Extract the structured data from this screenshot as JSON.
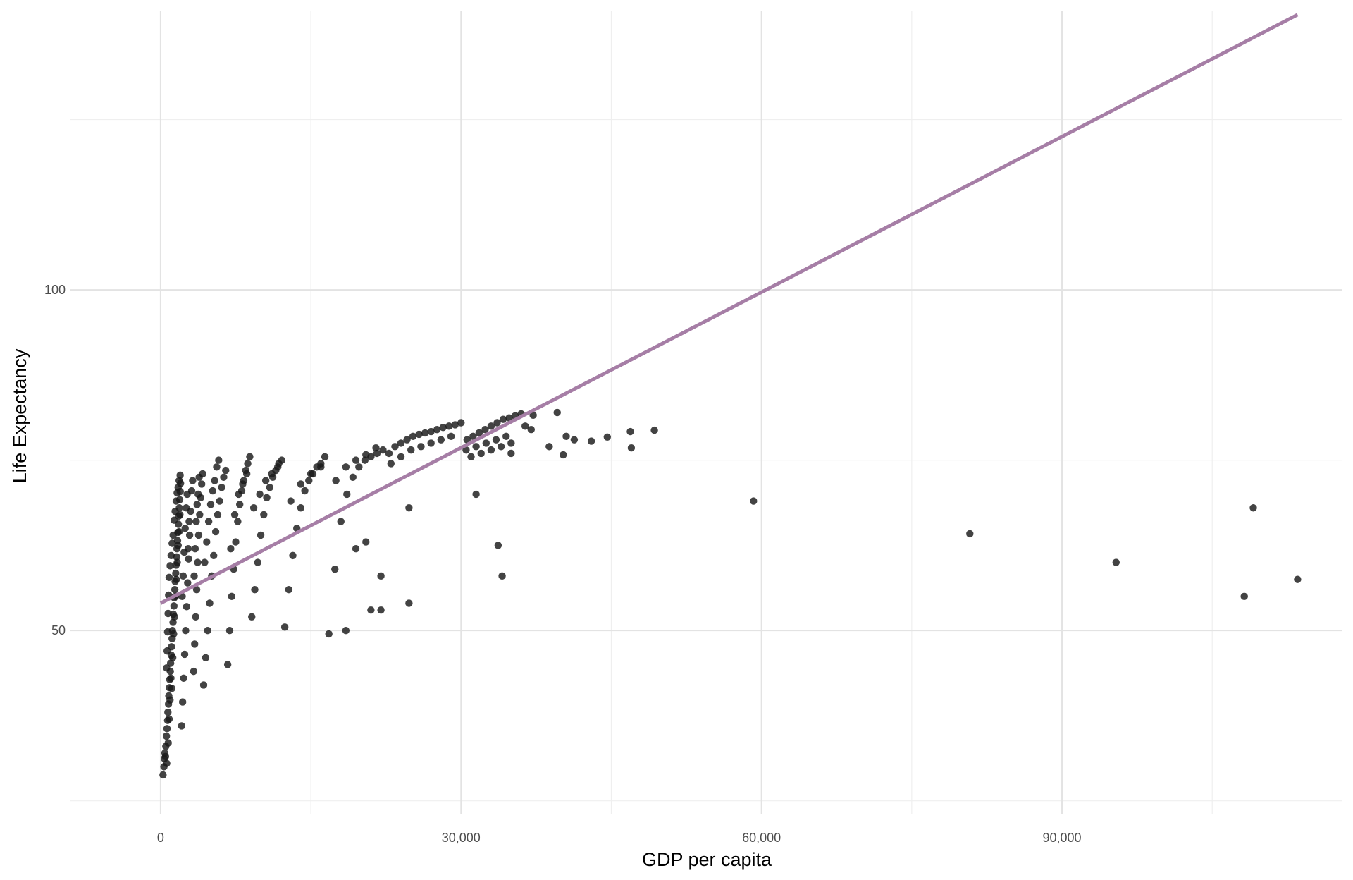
{
  "colors": {
    "background": "#ffffff",
    "grid_major": "#e3e3e3",
    "grid_minor": "#efefef",
    "points": "#1a1a1a",
    "fit_line": "#a67ea6"
  },
  "chart_data": {
    "type": "scatter",
    "xlabel": "GDP per capita",
    "ylabel": "Life Expectancy",
    "xlim": [
      -9000,
      118000
    ],
    "ylim": [
      23,
      141
    ],
    "grid": true,
    "x_ticks": [
      {
        "value": 0,
        "label": "0"
      },
      {
        "value": 30000,
        "label": "30,000"
      },
      {
        "value": 60000,
        "label": "60,000"
      },
      {
        "value": 90000,
        "label": "90,000"
      }
    ],
    "y_ticks": [
      {
        "value": 50,
        "label": "50"
      },
      {
        "value": 100,
        "label": "100"
      }
    ],
    "fit_line": {
      "x": [
        0,
        113523
      ],
      "y": [
        54.0,
        140.4
      ]
    },
    "points": [
      [
        241,
        28.8
      ],
      [
        331,
        30.0
      ],
      [
        376,
        31.2
      ],
      [
        420,
        32.0
      ],
      [
        486,
        31.5
      ],
      [
        520,
        33.0
      ],
      [
        580,
        34.5
      ],
      [
        610,
        30.5
      ],
      [
        640,
        35.6
      ],
      [
        700,
        36.8
      ],
      [
        730,
        38.0
      ],
      [
        760,
        33.5
      ],
      [
        790,
        39.2
      ],
      [
        820,
        40.4
      ],
      [
        850,
        37.0
      ],
      [
        880,
        41.6
      ],
      [
        910,
        42.8
      ],
      [
        940,
        39.8
      ],
      [
        970,
        44.0
      ],
      [
        1000,
        45.2
      ],
      [
        1030,
        43.0
      ],
      [
        1060,
        46.4
      ],
      [
        1090,
        47.6
      ],
      [
        1120,
        41.5
      ],
      [
        1150,
        48.8
      ],
      [
        1180,
        50.0
      ],
      [
        1210,
        46.0
      ],
      [
        1240,
        51.2
      ],
      [
        1270,
        52.4
      ],
      [
        1300,
        49.5
      ],
      [
        1330,
        53.6
      ],
      [
        1360,
        54.8
      ],
      [
        1390,
        52.0
      ],
      [
        1420,
        56.0
      ],
      [
        1450,
        57.2
      ],
      [
        1480,
        55.0
      ],
      [
        1510,
        58.4
      ],
      [
        1540,
        59.6
      ],
      [
        1570,
        57.5
      ],
      [
        1600,
        60.8
      ],
      [
        1630,
        62.0
      ],
      [
        1660,
        60.0
      ],
      [
        1690,
        63.2
      ],
      [
        1720,
        64.4
      ],
      [
        1750,
        62.5
      ],
      [
        1780,
        65.6
      ],
      [
        1810,
        66.8
      ],
      [
        1840,
        64.5
      ],
      [
        1870,
        68.0
      ],
      [
        1900,
        69.2
      ],
      [
        1930,
        67.0
      ],
      [
        1960,
        70.4
      ],
      [
        1990,
        71.6
      ],
      [
        600,
        44.5
      ],
      [
        650,
        47.0
      ],
      [
        700,
        49.8
      ],
      [
        750,
        52.5
      ],
      [
        800,
        55.2
      ],
      [
        850,
        57.8
      ],
      [
        950,
        59.5
      ],
      [
        1050,
        61.0
      ],
      [
        1150,
        62.8
      ],
      [
        1250,
        64.0
      ],
      [
        1350,
        66.2
      ],
      [
        1450,
        67.5
      ],
      [
        1550,
        69.0
      ],
      [
        1650,
        70.2
      ],
      [
        1750,
        71.0
      ],
      [
        1850,
        72.0
      ],
      [
        1950,
        72.8
      ],
      [
        2100,
        36.0
      ],
      [
        2200,
        39.5
      ],
      [
        2300,
        43.0
      ],
      [
        2400,
        46.5
      ],
      [
        2500,
        50.0
      ],
      [
        2600,
        53.5
      ],
      [
        2700,
        57.0
      ],
      [
        2800,
        60.5
      ],
      [
        2900,
        64.0
      ],
      [
        3000,
        67.5
      ],
      [
        3100,
        70.5
      ],
      [
        3200,
        72.0
      ],
      [
        2150,
        55.0
      ],
      [
        2250,
        58.0
      ],
      [
        2350,
        61.5
      ],
      [
        2450,
        65.0
      ],
      [
        2550,
        68.0
      ],
      [
        2650,
        70.0
      ],
      [
        2750,
        62.0
      ],
      [
        2850,
        66.0
      ],
      [
        3300,
        44.0
      ],
      [
        3400,
        48.0
      ],
      [
        3500,
        52.0
      ],
      [
        3600,
        56.0
      ],
      [
        3700,
        60.0
      ],
      [
        3800,
        64.0
      ],
      [
        3900,
        67.0
      ],
      [
        4000,
        69.5
      ],
      [
        4100,
        71.5
      ],
      [
        4200,
        73.0
      ],
      [
        3350,
        58.0
      ],
      [
        3450,
        62.0
      ],
      [
        3550,
        66.0
      ],
      [
        3650,
        68.5
      ],
      [
        3750,
        70.0
      ],
      [
        3850,
        72.5
      ],
      [
        4300,
        42.0
      ],
      [
        4500,
        46.0
      ],
      [
        4700,
        50.0
      ],
      [
        4900,
        54.0
      ],
      [
        5100,
        58.0
      ],
      [
        5300,
        61.0
      ],
      [
        5500,
        64.5
      ],
      [
        5700,
        67.0
      ],
      [
        5900,
        69.0
      ],
      [
        6100,
        71.0
      ],
      [
        6300,
        72.5
      ],
      [
        6500,
        73.5
      ],
      [
        4400,
        60.0
      ],
      [
        4600,
        63.0
      ],
      [
        4800,
        66.0
      ],
      [
        5000,
        68.5
      ],
      [
        5200,
        70.5
      ],
      [
        5400,
        72.0
      ],
      [
        5600,
        74.0
      ],
      [
        5800,
        75.0
      ],
      [
        6700,
        45.0
      ],
      [
        6900,
        50.0
      ],
      [
        7100,
        55.0
      ],
      [
        7300,
        59.0
      ],
      [
        7500,
        63.0
      ],
      [
        7700,
        66.0
      ],
      [
        7900,
        68.5
      ],
      [
        8100,
        70.5
      ],
      [
        8300,
        72.0
      ],
      [
        8500,
        73.5
      ],
      [
        8700,
        74.5
      ],
      [
        8900,
        75.5
      ],
      [
        7000,
        62.0
      ],
      [
        7400,
        67.0
      ],
      [
        7800,
        70.0
      ],
      [
        8200,
        71.5
      ],
      [
        8600,
        73.0
      ],
      [
        9100,
        52.0
      ],
      [
        9400,
        56.0
      ],
      [
        9700,
        60.0
      ],
      [
        10000,
        64.0
      ],
      [
        10300,
        67.0
      ],
      [
        10600,
        69.5
      ],
      [
        10900,
        71.0
      ],
      [
        11200,
        72.5
      ],
      [
        11500,
        73.5
      ],
      [
        11800,
        74.5
      ],
      [
        12100,
        75.0
      ],
      [
        9300,
        68.0
      ],
      [
        9900,
        70.0
      ],
      [
        10500,
        72.0
      ],
      [
        11100,
        73.0
      ],
      [
        11700,
        74.0
      ],
      [
        12400,
        50.5
      ],
      [
        12800,
        56.0
      ],
      [
        13200,
        61.0
      ],
      [
        13600,
        65.0
      ],
      [
        14000,
        68.0
      ],
      [
        14400,
        70.5
      ],
      [
        14800,
        72.0
      ],
      [
        15200,
        73.0
      ],
      [
        15600,
        74.0
      ],
      [
        16000,
        74.5
      ],
      [
        16400,
        75.5
      ],
      [
        13000,
        69.0
      ],
      [
        14000,
        71.5
      ],
      [
        15000,
        73.0
      ],
      [
        16000,
        74.0
      ],
      [
        16800,
        49.5
      ],
      [
        17400,
        59.0
      ],
      [
        18000,
        66.0
      ],
      [
        18600,
        70.0
      ],
      [
        19200,
        72.5
      ],
      [
        19800,
        74.0
      ],
      [
        20400,
        75.0
      ],
      [
        21000,
        75.5
      ],
      [
        21600,
        76.0
      ],
      [
        22200,
        76.5
      ],
      [
        17500,
        72.0
      ],
      [
        18500,
        74.0
      ],
      [
        19500,
        75.0
      ],
      [
        20500,
        75.8
      ],
      [
        21500,
        76.8
      ],
      [
        18500,
        50.0
      ],
      [
        21000,
        53.0
      ],
      [
        22000,
        53.0
      ],
      [
        22000,
        58.0
      ],
      [
        20500,
        63.0
      ],
      [
        24800,
        68.0
      ],
      [
        24800,
        54.0
      ],
      [
        19500,
        62.0
      ],
      [
        22800,
        76.0
      ],
      [
        23400,
        77.0
      ],
      [
        24000,
        77.5
      ],
      [
        24600,
        78.0
      ],
      [
        25200,
        78.5
      ],
      [
        25800,
        78.8
      ],
      [
        26400,
        79.0
      ],
      [
        27000,
        79.2
      ],
      [
        27600,
        79.5
      ],
      [
        28200,
        79.8
      ],
      [
        28800,
        80.0
      ],
      [
        29400,
        80.2
      ],
      [
        30000,
        80.5
      ],
      [
        23000,
        74.5
      ],
      [
        24000,
        75.5
      ],
      [
        25000,
        76.5
      ],
      [
        26000,
        77.0
      ],
      [
        27000,
        77.5
      ],
      [
        28000,
        78.0
      ],
      [
        29000,
        78.5
      ],
      [
        30600,
        78.0
      ],
      [
        31200,
        78.5
      ],
      [
        31800,
        79.0
      ],
      [
        32400,
        79.5
      ],
      [
        33000,
        80.0
      ],
      [
        33600,
        80.5
      ],
      [
        34200,
        81.0
      ],
      [
        34800,
        81.2
      ],
      [
        35400,
        81.5
      ],
      [
        30500,
        76.5
      ],
      [
        31500,
        77.0
      ],
      [
        32500,
        77.5
      ],
      [
        33500,
        78.0
      ],
      [
        34500,
        78.5
      ],
      [
        35000,
        77.5
      ],
      [
        31000,
        75.5
      ],
      [
        32000,
        76.0
      ],
      [
        33000,
        76.5
      ],
      [
        34000,
        77.0
      ],
      [
        35000,
        76.0
      ],
      [
        31500,
        70.0
      ],
      [
        33700,
        62.5
      ],
      [
        34100,
        58.0
      ],
      [
        36000,
        81.8
      ],
      [
        37200,
        81.6
      ],
      [
        39600,
        82.0
      ],
      [
        40500,
        78.5
      ],
      [
        41300,
        78.0
      ],
      [
        43000,
        77.8
      ],
      [
        44600,
        78.4
      ],
      [
        46900,
        79.2
      ],
      [
        47000,
        76.8
      ],
      [
        49300,
        79.4
      ],
      [
        38800,
        77.0
      ],
      [
        40200,
        75.8
      ],
      [
        36400,
        80.0
      ],
      [
        37000,
        79.5
      ],
      [
        59200,
        69.0
      ],
      [
        80800,
        64.2
      ],
      [
        95400,
        60.0
      ],
      [
        108200,
        55.0
      ],
      [
        109100,
        68.0
      ],
      [
        113523,
        57.5
      ]
    ]
  }
}
